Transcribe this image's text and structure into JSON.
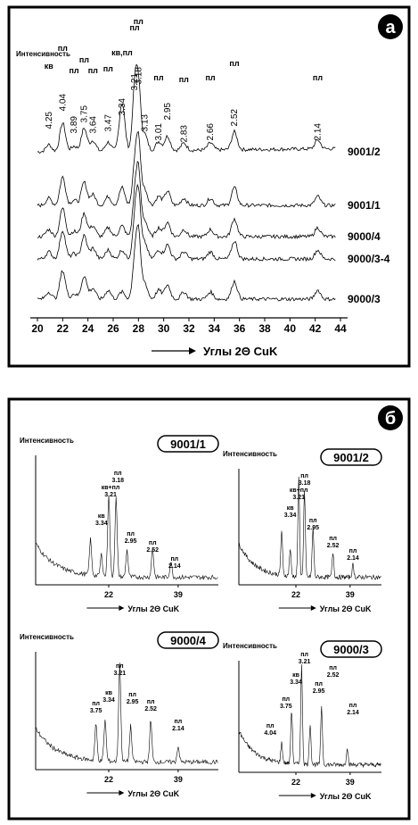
{
  "panel_a": {
    "badge": "а",
    "ylabel": "Интенсивность",
    "xlabel": "Углы  2Θ CuK",
    "x_ticks": [
      "20",
      "22",
      "24",
      "26",
      "28",
      "30",
      "32",
      "34",
      "36",
      "38",
      "40",
      "42",
      "44"
    ],
    "samples": [
      "9001/2",
      "9001/1",
      "9000/4",
      "9000/3-4",
      "9000/3"
    ]
  },
  "panel_b": {
    "badge": "б",
    "charts": [
      {
        "name": "9001/1",
        "ylabel": "Интенсивность",
        "xlabel": "Углы 2Θ CuK",
        "ticks": [
          "22",
          "39"
        ]
      },
      {
        "name": "9001/2",
        "ylabel": "Интенсивность",
        "xlabel": "Углы 2Θ CuK",
        "ticks": [
          "22",
          "39"
        ]
      },
      {
        "name": "9000/4",
        "ylabel": "Интенсивность",
        "xlabel": "Углы 2Θ CuK",
        "ticks": [
          "22",
          "39"
        ]
      },
      {
        "name": "9000/3",
        "ylabel": "Интенсивность",
        "xlabel": "Углы 2Θ CuK",
        "ticks": [
          "22",
          "39"
        ]
      }
    ]
  },
  "chart_data": [
    {
      "type": "line",
      "title": "",
      "ylabel": "Интенсивность",
      "xlabel": "Углы 2Θ CuK",
      "xlim": [
        20,
        44
      ],
      "series_names": [
        "9001/2",
        "9001/1",
        "9000/4",
        "9000/3-4",
        "9000/3"
      ],
      "annotations": [
        {
          "x": 20.9,
          "mineral": "кв",
          "d": "4.25"
        },
        {
          "x": 22.0,
          "mineral": "пл",
          "d": "4.04"
        },
        {
          "x": 22.9,
          "mineral": "пл",
          "d": "3.89"
        },
        {
          "x": 23.7,
          "mineral": "пл",
          "d": "3.75"
        },
        {
          "x": 24.4,
          "mineral": "пл",
          "d": "3.64"
        },
        {
          "x": 25.6,
          "mineral": "пл",
          "d": "3.47"
        },
        {
          "x": 26.7,
          "mineral": "кв,пл",
          "d": "3.34"
        },
        {
          "x": 27.7,
          "mineral": "пл",
          "d": "3.21"
        },
        {
          "x": 28.0,
          "mineral": "пл",
          "d": "3.18"
        },
        {
          "x": 28.5,
          "mineral": "",
          "d": "3.13"
        },
        {
          "x": 29.6,
          "mineral": "пл",
          "d": "3.01"
        },
        {
          "x": 30.3,
          "mineral": "",
          "d": "2.95"
        },
        {
          "x": 31.6,
          "mineral": "пл",
          "d": "2.83"
        },
        {
          "x": 33.7,
          "mineral": "пл",
          "d": "2.66"
        },
        {
          "x": 35.6,
          "mineral": "пл",
          "d": "2.52"
        },
        {
          "x": 42.2,
          "mineral": "пл",
          "d": "2.14"
        }
      ]
    },
    {
      "type": "line",
      "title": "9001/1",
      "ylabel": "Интенсивность",
      "xlabel": "Углы 2Θ CuK",
      "x_ticks": [
        "22",
        "39"
      ],
      "annotations": [
        {
          "mineral": "кв",
          "d": "3.34"
        },
        {
          "mineral": "кв+пл",
          "d": "3.21"
        },
        {
          "mineral": "пл",
          "d": "3.18"
        },
        {
          "mineral": "пл",
          "d": "2.95"
        },
        {
          "mineral": "пл",
          "d": "2.52"
        },
        {
          "mineral": "пл",
          "d": "2.14"
        }
      ]
    },
    {
      "type": "line",
      "title": "9001/2",
      "ylabel": "Интенсивность",
      "xlabel": "Углы 2Θ CuK",
      "x_ticks": [
        "22",
        "39"
      ],
      "annotations": [
        {
          "mineral": "кв",
          "d": "3.34"
        },
        {
          "mineral": "кв+пл",
          "d": "3.21"
        },
        {
          "mineral": "пл",
          "d": "3.18"
        },
        {
          "mineral": "пл",
          "d": "2.95"
        },
        {
          "mineral": "пл",
          "d": "2.52"
        },
        {
          "mineral": "пл",
          "d": "2.14"
        }
      ]
    },
    {
      "type": "line",
      "title": "9000/4",
      "ylabel": "Интенсивность",
      "xlabel": "Углы 2Θ CuK",
      "x_ticks": [
        "22",
        "39"
      ],
      "annotations": [
        {
          "mineral": "пл",
          "d": "3.75"
        },
        {
          "mineral": "кв",
          "d": "3.34"
        },
        {
          "mineral": "пл",
          "d": "3.21"
        },
        {
          "mineral": "пл",
          "d": "2.95"
        },
        {
          "mineral": "пл",
          "d": "2.52"
        },
        {
          "mineral": "пл",
          "d": "2.14"
        }
      ]
    },
    {
      "type": "line",
      "title": "9000/3",
      "ylabel": "Интенсивность",
      "xlabel": "Углы 2Θ CuK",
      "x_ticks": [
        "22",
        "39"
      ],
      "annotations": [
        {
          "mineral": "пл",
          "d": "4.04"
        },
        {
          "mineral": "пл",
          "d": "3.75"
        },
        {
          "mineral": "кв",
          "d": "3.34"
        },
        {
          "mineral": "пл",
          "d": "3.21"
        },
        {
          "mineral": "пл",
          "d": "2.95"
        },
        {
          "mineral": "пл",
          "d": "2.52"
        },
        {
          "mineral": "пл",
          "d": "2.14"
        }
      ]
    }
  ]
}
